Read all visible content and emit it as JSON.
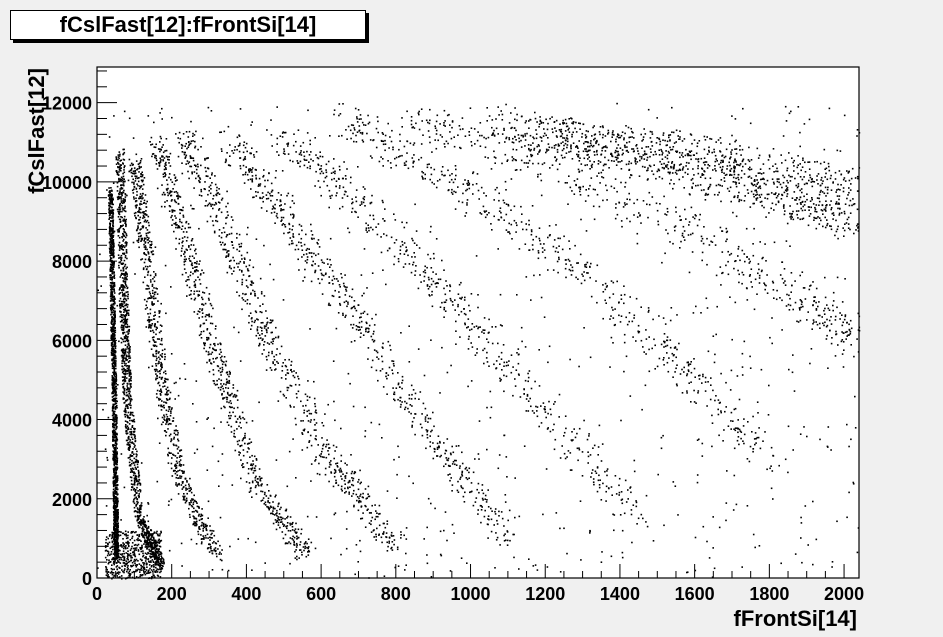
{
  "chart_data": {
    "type": "scatter",
    "title": "fCslFast[12]:fFrontSi[14]",
    "xlabel": "fFrontSi[14]",
    "ylabel": "fCslFast[12]",
    "xlim": [
      0,
      2040
    ],
    "ylim": [
      0,
      12900
    ],
    "x_ticks": [
      0,
      200,
      400,
      600,
      800,
      1000,
      1200,
      1400,
      1600,
      1800,
      2000
    ],
    "y_ticks": [
      0,
      2000,
      4000,
      6000,
      8000,
      10000,
      12000
    ],
    "x_tick_labels": [
      "0",
      "200",
      "400",
      "600",
      "800",
      "1000",
      "1200",
      "1400",
      "1600",
      "1800",
      "2000"
    ],
    "y_tick_labels": [
      "0",
      "2000",
      "4000",
      "6000",
      "8000",
      "10000",
      "12000"
    ],
    "grid": false,
    "marker_color": "#000000",
    "bands": [
      {
        "name": "band-1",
        "points": [
          [
            35,
            9800
          ],
          [
            40,
            7000
          ],
          [
            45,
            4500
          ],
          [
            48,
            2000
          ],
          [
            50,
            500
          ]
        ],
        "density": 0.9
      },
      {
        "name": "band-2",
        "points": [
          [
            60,
            10800
          ],
          [
            70,
            7000
          ],
          [
            80,
            4500
          ],
          [
            110,
            1600
          ],
          [
            170,
            300
          ]
        ],
        "density": 0.7
      },
      {
        "name": "band-3",
        "points": [
          [
            100,
            10500
          ],
          [
            130,
            8200
          ],
          [
            170,
            5000
          ],
          [
            220,
            2500
          ],
          [
            320,
            600
          ]
        ],
        "density": 0.4
      },
      {
        "name": "band-4",
        "points": [
          [
            160,
            11000
          ],
          [
            230,
            8600
          ],
          [
            320,
            5500
          ],
          [
            420,
            2500
          ],
          [
            560,
            600
          ]
        ],
        "density": 0.35
      },
      {
        "name": "band-5",
        "points": [
          [
            230,
            11200
          ],
          [
            340,
            8800
          ],
          [
            460,
            6000
          ],
          [
            620,
            3000
          ],
          [
            800,
            800
          ]
        ],
        "density": 0.3
      },
      {
        "name": "band-6",
        "points": [
          [
            350,
            11100
          ],
          [
            500,
            9200
          ],
          [
            700,
            6500
          ],
          [
            900,
            3500
          ],
          [
            1100,
            1000
          ]
        ],
        "density": 0.25
      },
      {
        "name": "band-7",
        "points": [
          [
            500,
            11200
          ],
          [
            700,
            9500
          ],
          [
            950,
            7000
          ],
          [
            1200,
            4200
          ],
          [
            1450,
            1500
          ]
        ],
        "density": 0.2
      },
      {
        "name": "band-8",
        "points": [
          [
            650,
            11600
          ],
          [
            900,
            10300
          ],
          [
            1200,
            8500
          ],
          [
            1500,
            6000
          ],
          [
            1800,
            3000
          ]
        ],
        "density": 0.2
      },
      {
        "name": "band-9",
        "points": [
          [
            850,
            11500
          ],
          [
            1200,
            10500
          ],
          [
            1600,
            8800
          ],
          [
            1900,
            7000
          ],
          [
            2040,
            6000
          ]
        ],
        "density": 0.2
      },
      {
        "name": "band-10",
        "points": [
          [
            1050,
            11500
          ],
          [
            1400,
            10800
          ],
          [
            1800,
            9700
          ],
          [
            2040,
            9000
          ]
        ],
        "density": 0.25
      },
      {
        "name": "band-11",
        "points": [
          [
            1200,
            11200
          ],
          [
            1600,
            10700
          ],
          [
            2040,
            9800
          ]
        ],
        "density": 0.25
      }
    ]
  }
}
